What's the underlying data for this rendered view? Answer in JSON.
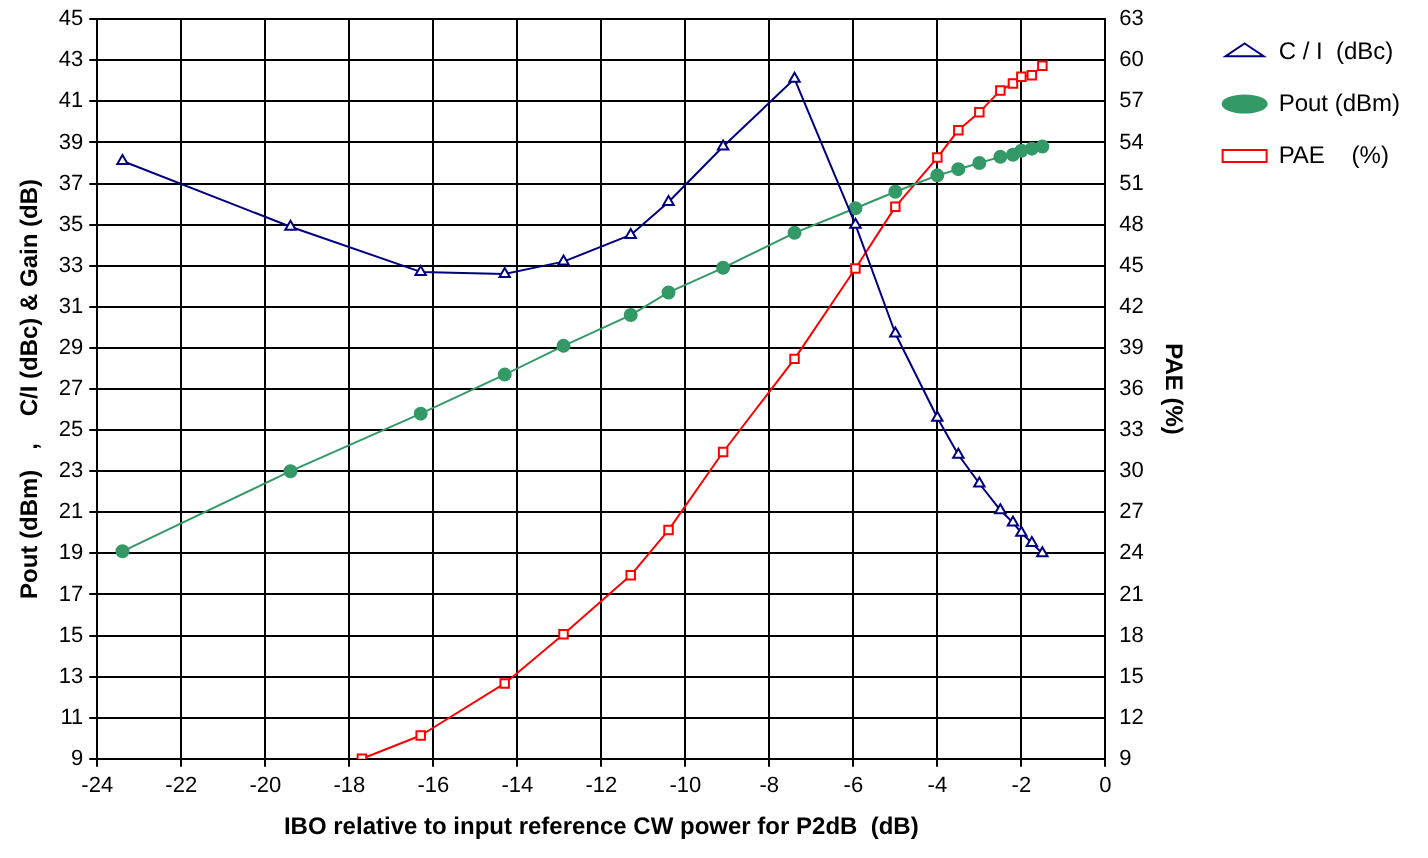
{
  "chart_data": {
    "type": "line",
    "xlabel": "IBO relative to input reference CW power for P2dB  (dB)",
    "ylabel": "Pout (dBm)   ,    C/I (dBc) & Gain (dB)",
    "y2label": "PAE (%)",
    "xlim": [
      -24,
      0
    ],
    "xticks": [
      -24,
      -22,
      -20,
      -18,
      -16,
      -14,
      -12,
      -10,
      -8,
      -6,
      -4,
      -2,
      0
    ],
    "ylim": [
      9,
      45
    ],
    "yticks": [
      9,
      11,
      13,
      15,
      17,
      19,
      21,
      23,
      25,
      27,
      29,
      31,
      33,
      35,
      37,
      39,
      41,
      43,
      45
    ],
    "y2lim": [
      9,
      63
    ],
    "y2ticks": [
      9,
      12,
      15,
      18,
      21,
      24,
      27,
      30,
      33,
      36,
      39,
      42,
      45,
      48,
      51,
      54,
      57,
      60,
      63
    ],
    "grid": true,
    "legend": "top right",
    "line_style": "solid",
    "series": [
      {
        "name": "C / I  (dBc)",
        "color": "#000080",
        "marker": "triangle",
        "x": [
          -23.4,
          -19.4,
          -16.3,
          -14.3,
          -12.9,
          -11.3,
          -10.4,
          -9.1,
          -7.4,
          -5.95,
          -5.0,
          -4.0,
          -3.5,
          -3.0,
          -2.5,
          -2.2,
          -2.0,
          -1.75,
          -1.5
        ],
        "values": [
          38.1,
          34.9,
          32.7,
          32.6,
          33.2,
          34.5,
          36.1,
          38.8,
          42.1,
          35.0,
          29.7,
          25.6,
          23.8,
          22.4,
          21.1,
          20.5,
          20.0,
          19.5,
          19.0
        ]
      },
      {
        "name": "Pout (dBm)",
        "color": "#339966",
        "marker": "circle",
        "x": [
          -23.4,
          -19.4,
          -16.3,
          -14.3,
          -12.9,
          -11.3,
          -10.4,
          -9.1,
          -7.4,
          -5.95,
          -5.0,
          -4.0,
          -3.5,
          -3.0,
          -2.5,
          -2.2,
          -2.0,
          -1.75,
          -1.5
        ],
        "values": [
          19.1,
          23.0,
          25.8,
          27.7,
          29.1,
          30.6,
          31.7,
          32.9,
          34.6,
          35.8,
          36.6,
          37.4,
          37.7,
          38.0,
          38.3,
          38.4,
          38.6,
          38.7,
          38.8
        ]
      },
      {
        "name": "PAE    (%)",
        "color": "#ff0000",
        "marker": "square",
        "axis": "y2",
        "x": [
          -17.7,
          -16.3,
          -14.3,
          -12.9,
          -11.3,
          -10.4,
          -9.1,
          -7.4,
          -5.95,
          -5.0,
          -4.0,
          -3.5,
          -3.0,
          -2.5,
          -2.2,
          -2.0,
          -1.75,
          -1.5
        ],
        "values": [
          9,
          10.7,
          14.5,
          18.1,
          22.4,
          25.7,
          31.4,
          38.2,
          44.8,
          49.3,
          52.9,
          54.9,
          56.2,
          57.8,
          58.3,
          58.8,
          58.9,
          59.6
        ]
      }
    ]
  }
}
